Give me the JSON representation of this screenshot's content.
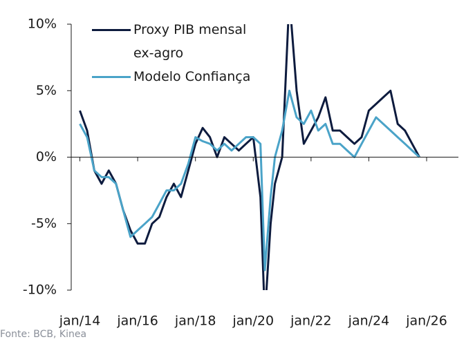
{
  "chart_data": {
    "type": "line",
    "x": [
      2014,
      2014.25,
      2014.5,
      2014.75,
      2015,
      2015.25,
      2015.5,
      2015.75,
      2016,
      2016.25,
      2016.5,
      2016.75,
      2017,
      2017.25,
      2017.5,
      2017.75,
      2018,
      2018.25,
      2018.5,
      2018.75,
      2019,
      2019.25,
      2019.5,
      2019.75,
      2020,
      2020.25,
      2020.4,
      2020.6,
      2020.75,
      2021,
      2021.25,
      2021.5,
      2021.75,
      2022,
      2022.25,
      2022.5,
      2022.75,
      2023,
      2023.25,
      2023.5,
      2023.75,
      2024,
      2024.25,
      2024.5,
      2024.75,
      2025,
      2025.25,
      2025.5,
      2025.75
    ],
    "series": [
      {
        "name": "Proxy PIB mensal ex-agro",
        "color": "#0d1b3e",
        "values": [
          3.5,
          2,
          -1,
          -2,
          -1,
          -2,
          -4,
          -5.5,
          -6.5,
          -6.5,
          -5,
          -4.5,
          -3,
          -2,
          -3,
          -1,
          1,
          2.2,
          1.5,
          0,
          1.5,
          1,
          0.5,
          1,
          1.5,
          -3,
          -12,
          -5,
          -2,
          0,
          12,
          5,
          1,
          2,
          3,
          4.5,
          2,
          2,
          1.5,
          1,
          1.5,
          3.5,
          4,
          4.5,
          5,
          2.5,
          2,
          1,
          0
        ]
      },
      {
        "name": "Modelo Confiança",
        "color": "#4aa3c8",
        "values": [
          2.5,
          1.5,
          -1,
          -1.5,
          -1.5,
          -2,
          -4,
          -6,
          -5.5,
          -5,
          -4.5,
          -3.5,
          -2.5,
          -2.5,
          -2,
          -0.5,
          1.5,
          1.2,
          1,
          0.5,
          1,
          0.5,
          1,
          1.5,
          1.5,
          1,
          -8.5,
          -3,
          0,
          2,
          5,
          3,
          2.5,
          3.5,
          2,
          2.5,
          1,
          1,
          0.5,
          0,
          1,
          2,
          3,
          2.5,
          2,
          1.5,
          1,
          0.5,
          0
        ]
      }
    ],
    "xlim": [
      2013.7,
      2027.1
    ],
    "xticks": [
      {
        "value": 2014,
        "label": "jan/14"
      },
      {
        "value": 2016,
        "label": "jan/16"
      },
      {
        "value": 2018,
        "label": "jan/18"
      },
      {
        "value": 2020,
        "label": "jan/20"
      },
      {
        "value": 2022,
        "label": "jan/22"
      },
      {
        "value": 2024,
        "label": "jan/24"
      },
      {
        "value": 2026,
        "label": "jan/26"
      }
    ],
    "ylim": [
      -10,
      10
    ],
    "yticks": [
      {
        "value": -10,
        "label": "-10%"
      },
      {
        "value": -5,
        "label": "-5%"
      },
      {
        "value": 0,
        "label": "0%"
      },
      {
        "value": 5,
        "label": "5%"
      },
      {
        "value": 10,
        "label": "10%"
      }
    ],
    "source": "Fonte: BCB, Kinea"
  }
}
